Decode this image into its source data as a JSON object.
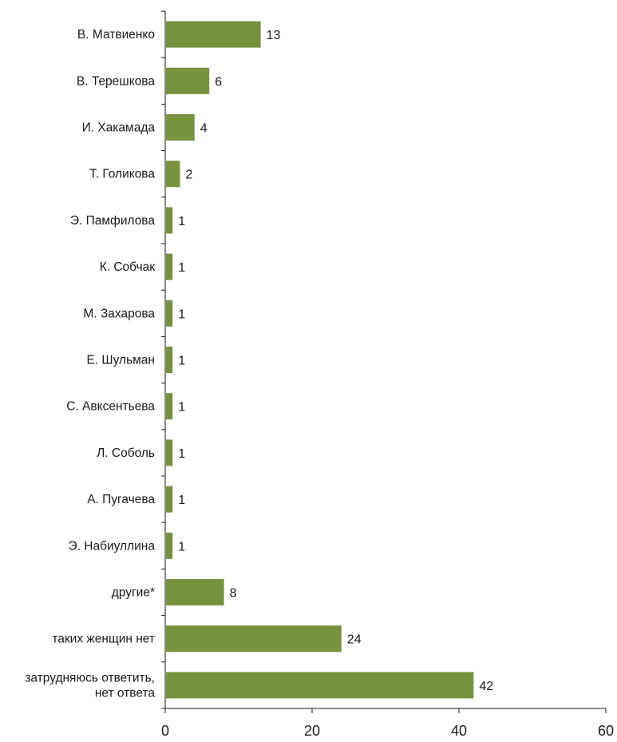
{
  "chart_data": {
    "type": "bar",
    "orientation": "horizontal",
    "categories": [
      "В. Матвиенко",
      "В. Терешкова",
      "И. Хакамада",
      "Т. Голикова",
      "Э. Памфилова",
      "К. Собчак",
      "М. Захарова",
      "Е. Шульман",
      "С. Авксентьева",
      "Л. Соболь",
      "А. Пугачева",
      "Э. Набиуллина",
      "другие*",
      "таких женщин нет",
      [
        "затрудняюсь ответить,",
        "нет ответа"
      ]
    ],
    "values": [
      13,
      6,
      4,
      2,
      1,
      1,
      1,
      1,
      1,
      1,
      1,
      1,
      8,
      24,
      42
    ],
    "xlim": [
      0,
      60
    ],
    "xticks": [
      0,
      20,
      40,
      60
    ],
    "bar_color": "#76923c",
    "grid": false,
    "title": "",
    "xlabel": "",
    "ylabel": ""
  }
}
